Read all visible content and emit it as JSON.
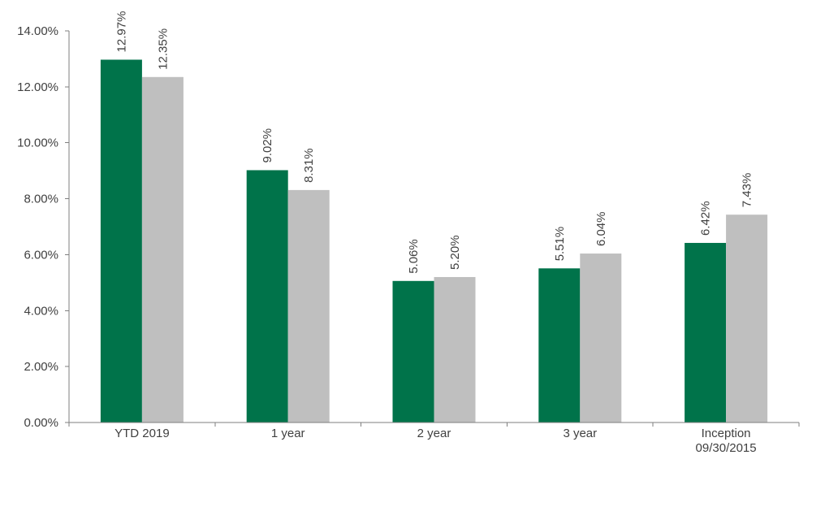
{
  "chart_data": {
    "type": "bar",
    "categories": [
      [
        "YTD 2019"
      ],
      [
        "1 year"
      ],
      [
        "2 year"
      ],
      [
        "3 year"
      ],
      [
        "Inception",
        "09/30/2015"
      ]
    ],
    "series": [
      {
        "color": "#00734A",
        "values": [
          12.97,
          9.02,
          5.06,
          5.51,
          6.42
        ],
        "labels": [
          "12.97%",
          "9.02%",
          "5.06%",
          "5.51%",
          "6.42%"
        ]
      },
      {
        "color": "#BFBFBF",
        "values": [
          12.35,
          8.31,
          5.2,
          6.04,
          7.43
        ],
        "labels": [
          "12.35%",
          "8.31%",
          "5.20%",
          "6.04%",
          "7.43%"
        ]
      }
    ],
    "y_ticks": [
      0,
      2,
      4,
      6,
      8,
      10,
      12,
      14
    ],
    "y_tick_labels": [
      "0.00%",
      "2.00%",
      "4.00%",
      "6.00%",
      "8.00%",
      "10.00%",
      "12.00%",
      "14.00%"
    ],
    "ylim": [
      0,
      14
    ],
    "grid": false,
    "legend": "none",
    "title": "",
    "xlabel": "",
    "ylabel": ""
  }
}
